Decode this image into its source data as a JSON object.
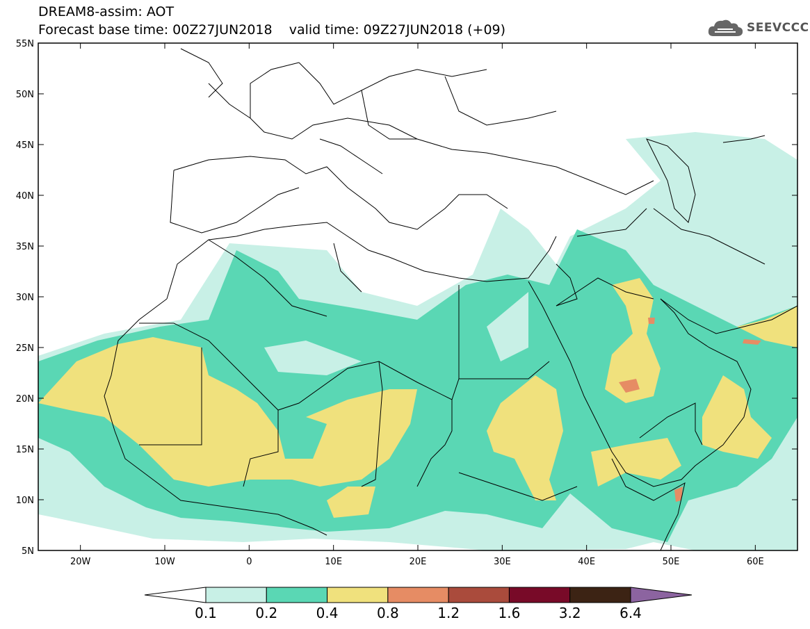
{
  "header": {
    "title_line1": "DREAM8-assim: AOT",
    "title_line2": "Forecast base time: 00Z27JUN2018    valid time: 09Z27JUN2018 (+09)",
    "logo_text": "SEEVCCC"
  },
  "map": {
    "variable": "AOT",
    "lon_range": [
      -25,
      65
    ],
    "lat_range": [
      5,
      55
    ],
    "lon_ticks": [
      "20W",
      "10W",
      "0",
      "10E",
      "20E",
      "30E",
      "40E",
      "50E",
      "60E"
    ],
    "lat_ticks": [
      "55N",
      "50N",
      "45N",
      "40N",
      "35N",
      "30N",
      "25N",
      "20N",
      "15N",
      "10N",
      "5N"
    ],
    "frame_color": "#000000",
    "coast_color": "#000000"
  },
  "colorbar": {
    "labels": [
      "0.1",
      "0.2",
      "0.4",
      "0.8",
      "1.2",
      "1.6",
      "3.2",
      "6.4"
    ],
    "colors": [
      "#ffffff",
      "#c8f0e6",
      "#5ad7b4",
      "#f0e17d",
      "#e68c64",
      "#aa4b3c",
      "#780a28",
      "#3c2314",
      "#8c64a0"
    ]
  }
}
